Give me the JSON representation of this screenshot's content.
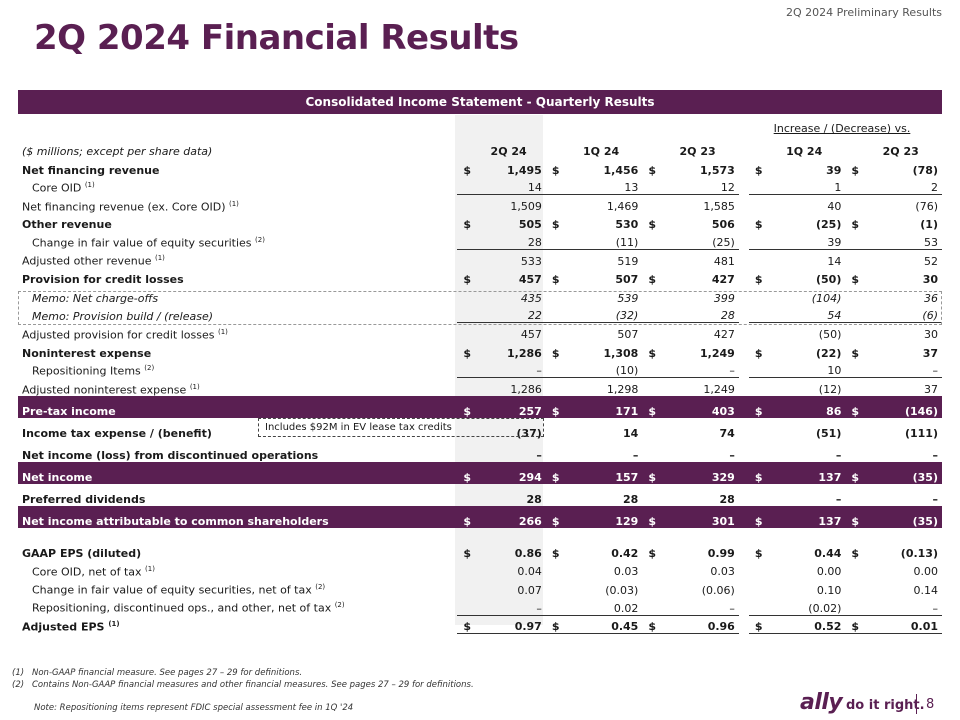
{
  "header": {
    "doc_label": "2Q 2024 Preliminary Results",
    "title": "2Q 2024 Financial Results"
  },
  "table": {
    "banner": "Consolidated Income Statement - Quarterly Results",
    "group_header": "Increase / (Decrease) vs.",
    "units_label": "($ millions; except per share data)",
    "columns": [
      "2Q 24",
      "1Q 24",
      "2Q 23",
      "1Q 24",
      "2Q 23"
    ],
    "currency_symbol": "$",
    "callout": "Includes $92M in EV lease tax credits",
    "rows": [
      {
        "label": "Net financing revenue",
        "sup": "",
        "style": "bold",
        "dollar": true,
        "values": [
          "1,495",
          "1,456",
          "1,573",
          "39",
          "(78)"
        ]
      },
      {
        "label": "Core OID",
        "sup": "(1)",
        "style": "indent",
        "dollar": false,
        "values": [
          "14",
          "13",
          "12",
          "1",
          "2"
        ]
      },
      {
        "label": "Net financing revenue (ex. Core OID)",
        "sup": "(1)",
        "style": "ruled",
        "dollar": false,
        "values": [
          "1,509",
          "1,469",
          "1,585",
          "40",
          "(76)"
        ]
      },
      {
        "label": "Other revenue",
        "sup": "",
        "style": "bold",
        "dollar": true,
        "values": [
          "505",
          "530",
          "506",
          "(25)",
          "(1)"
        ]
      },
      {
        "label": "Change in fair value of equity securities",
        "sup": "(2)",
        "style": "indent",
        "dollar": false,
        "values": [
          "28",
          "(11)",
          "(25)",
          "39",
          "53"
        ]
      },
      {
        "label": "Adjusted other revenue",
        "sup": "(1)",
        "style": "ruled",
        "dollar": false,
        "values": [
          "533",
          "519",
          "481",
          "14",
          "52"
        ]
      },
      {
        "label": "Provision for credit losses",
        "sup": "",
        "style": "bold",
        "dollar": true,
        "values": [
          "457",
          "507",
          "427",
          "(50)",
          "30"
        ]
      },
      {
        "label": "Memo: Net charge-offs",
        "sup": "",
        "style": "italic-indent",
        "dollar": false,
        "values": [
          "435",
          "539",
          "399",
          "(104)",
          "36"
        ]
      },
      {
        "label": "Memo: Provision build / (release)",
        "sup": "",
        "style": "italic-indent",
        "dollar": false,
        "values": [
          "22",
          "(32)",
          "28",
          "54",
          "(6)"
        ]
      },
      {
        "label": "Adjusted provision for credit losses",
        "sup": "(1)",
        "style": "ruled",
        "dollar": false,
        "values": [
          "457",
          "507",
          "427",
          "(50)",
          "30"
        ]
      },
      {
        "label": "Noninterest expense",
        "sup": "",
        "style": "bold",
        "dollar": true,
        "values": [
          "1,286",
          "1,308",
          "1,249",
          "(22)",
          "37"
        ]
      },
      {
        "label": "Repositioning Items",
        "sup": "(2)",
        "style": "indent",
        "dollar": false,
        "values": [
          "–",
          "(10)",
          "–",
          "10",
          "–"
        ]
      },
      {
        "label": "Adjusted noninterest expense",
        "sup": "(1)",
        "style": "ruled",
        "dollar": false,
        "values": [
          "1,286",
          "1,298",
          "1,249",
          "(12)",
          "37"
        ]
      },
      {
        "label": "Pre-tax income",
        "sup": "",
        "style": "purple",
        "dollar": true,
        "values": [
          "257",
          "171",
          "403",
          "86",
          "(146)"
        ]
      },
      {
        "label": "Income tax expense / (benefit)",
        "sup": "",
        "style": "bold-tall",
        "dollar": false,
        "values": [
          "(37)",
          "14",
          "74",
          "(51)",
          "(111)"
        ]
      },
      {
        "label": "Net income (loss) from discontinued operations",
        "sup": "",
        "style": "bold-tall",
        "dollar": false,
        "values": [
          "–",
          "–",
          "–",
          "–",
          "–"
        ]
      },
      {
        "label": "Net income",
        "sup": "",
        "style": "purple",
        "dollar": true,
        "values": [
          "294",
          "157",
          "329",
          "137",
          "(35)"
        ]
      },
      {
        "label": "Preferred dividends",
        "sup": "",
        "style": "bold-tall",
        "dollar": false,
        "values": [
          "28",
          "28",
          "28",
          "–",
          "–"
        ]
      },
      {
        "label": "Net income attributable to common shareholders",
        "sup": "",
        "style": "purple",
        "dollar": true,
        "values": [
          "266",
          "129",
          "301",
          "137",
          "(35)"
        ]
      },
      {
        "label": "GAAP EPS (diluted)",
        "sup": "",
        "style": "bold-tall",
        "dollar": true,
        "values": [
          "0.86",
          "0.42",
          "0.99",
          "0.44",
          "(0.13)"
        ]
      },
      {
        "label": "Core OID, net of tax",
        "sup": "(1)",
        "style": "indent",
        "dollar": false,
        "values": [
          "0.04",
          "0.03",
          "0.03",
          "0.00",
          "0.00"
        ]
      },
      {
        "label": "Change in fair value of equity securities, net of tax",
        "sup": "(2)",
        "style": "indent",
        "dollar": false,
        "values": [
          "0.07",
          "(0.03)",
          "(0.06)",
          "0.10",
          "0.14"
        ]
      },
      {
        "label": "Repositioning, discontinued ops., and other, net of tax",
        "sup": "(2)",
        "style": "indent",
        "dollar": false,
        "values": [
          "–",
          "0.02",
          "–",
          "(0.02)",
          "–"
        ]
      },
      {
        "label": "Adjusted EPS",
        "sup": "(1)",
        "style": "bold-ruled",
        "dollar": true,
        "values": [
          "0.97",
          "0.45",
          "0.96",
          "0.52",
          "0.01"
        ]
      }
    ]
  },
  "footnotes": [
    {
      "num": "(1)",
      "text": "Non-GAAP financial measure. See pages 27 – 29 for definitions."
    },
    {
      "num": "(2)",
      "text": "Contains Non-GAAP financial measures and other financial measures. See pages 27 – 29 for definitions."
    }
  ],
  "note": "Note: Repositioning items represent FDIC special assessment fee in 1Q '24",
  "brand": {
    "logo": "ally",
    "tagline": "do it right.",
    "page_number": "8",
    "accent": "#5a1f52"
  }
}
